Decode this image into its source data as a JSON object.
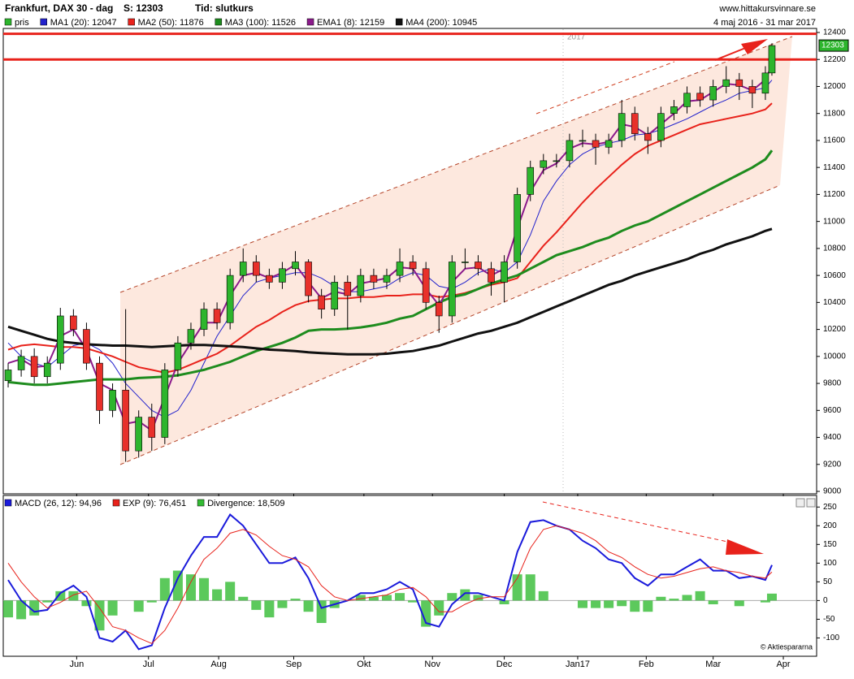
{
  "header": {
    "title": "Frankfurt, DAX 30 -",
    "period": "dag",
    "last": "S: 12303",
    "mode": "Tid: slutkurs",
    "site": "www.hittakursvinnare.se",
    "range": "4 maj 2016 - 31 mar 2017",
    "year_mark": "2017",
    "credit": "© Aktiespararna"
  },
  "chart_data": [
    {
      "type": "candlestick",
      "x": [
        0,
        4,
        8,
        12,
        16,
        20,
        24,
        28,
        32,
        36,
        40,
        44,
        48,
        52,
        56,
        60,
        64,
        68,
        72,
        76,
        80,
        84,
        88,
        92,
        96,
        100,
        104,
        108,
        112,
        116,
        120,
        124,
        128,
        132,
        136,
        140,
        144,
        148,
        152,
        156,
        160,
        164,
        168,
        172,
        176,
        180,
        184,
        188,
        192,
        196,
        200,
        204,
        208,
        212,
        216,
        220,
        224,
        228,
        232,
        234
      ],
      "xlim": [
        -1.5,
        247.7
      ],
      "ylim": [
        8982,
        12430
      ],
      "yticks": [
        9000,
        9200,
        9400,
        9600,
        9800,
        10000,
        10200,
        10400,
        10600,
        10800,
        11000,
        11200,
        11400,
        11600,
        11800,
        12000,
        12200,
        12400
      ],
      "hlines": [
        12390,
        12200
      ],
      "hline_color": "#e8221b",
      "candles": {
        "name": "pris",
        "color": "#2db52d",
        "down_color": "#e8302a",
        "values": [
          [
            9820,
            9950,
            9770,
            9900
          ],
          [
            9900,
            10050,
            9850,
            10000
          ],
          [
            10000,
            10060,
            9800,
            9850
          ],
          [
            9850,
            10000,
            9800,
            9950
          ],
          [
            9950,
            10360,
            9900,
            10300
          ],
          [
            10300,
            10350,
            10150,
            10200
          ],
          [
            10200,
            10250,
            9900,
            9950
          ],
          [
            9950,
            10000,
            9500,
            9600
          ],
          [
            9600,
            9800,
            9550,
            9750
          ],
          [
            9750,
            10350,
            9220,
            9300
          ],
          [
            9300,
            9600,
            9250,
            9550
          ],
          [
            9550,
            9650,
            9300,
            9400
          ],
          [
            9400,
            9950,
            9350,
            9900
          ],
          [
            9900,
            10150,
            9850,
            10100
          ],
          [
            10100,
            10250,
            10050,
            10200
          ],
          [
            10200,
            10400,
            10150,
            10350
          ],
          [
            10350,
            10400,
            10200,
            10250
          ],
          [
            10250,
            10650,
            10200,
            10600
          ],
          [
            10600,
            10800,
            10550,
            10700
          ],
          [
            10700,
            10750,
            10550,
            10600
          ],
          [
            10600,
            10650,
            10500,
            10550
          ],
          [
            10550,
            10700,
            10500,
            10650
          ],
          [
            10650,
            10780,
            10600,
            10700
          ],
          [
            10700,
            10720,
            10400,
            10450
          ],
          [
            10450,
            10500,
            10280,
            10350
          ],
          [
            10350,
            10600,
            10300,
            10550
          ],
          [
            10550,
            10600,
            10200,
            10450
          ],
          [
            10450,
            10650,
            10400,
            10600
          ],
          [
            10600,
            10650,
            10500,
            10550
          ],
          [
            10550,
            10650,
            10500,
            10600
          ],
          [
            10600,
            10800,
            10550,
            10700
          ],
          [
            10700,
            10750,
            10600,
            10650
          ],
          [
            10650,
            10700,
            10350,
            10400
          ],
          [
            10400,
            10450,
            10175,
            10300
          ],
          [
            10300,
            10750,
            10250,
            10700
          ],
          [
            10700,
            10800,
            10650,
            10700
          ],
          [
            10700,
            10750,
            10600,
            10650
          ],
          [
            10650,
            10700,
            10450,
            10550
          ],
          [
            10550,
            10750,
            10400,
            10700
          ],
          [
            10700,
            11250,
            10650,
            11200
          ],
          [
            11200,
            11450,
            11150,
            11400
          ],
          [
            11400,
            11500,
            11350,
            11450
          ],
          [
            11450,
            11500,
            11400,
            11450
          ],
          [
            11450,
            11650,
            11400,
            11600
          ],
          [
            11600,
            11680,
            11550,
            11600
          ],
          [
            11600,
            11650,
            11420,
            11550
          ],
          [
            11550,
            11650,
            11500,
            11600
          ],
          [
            11600,
            11900,
            11550,
            11800
          ],
          [
            11800,
            11850,
            11600,
            11650
          ],
          [
            11650,
            11700,
            11500,
            11600
          ],
          [
            11600,
            11850,
            11550,
            11800
          ],
          [
            11800,
            11900,
            11750,
            11850
          ],
          [
            11850,
            12000,
            11800,
            11950
          ],
          [
            11950,
            12000,
            11850,
            11900
          ],
          [
            11900,
            12050,
            11850,
            12000
          ],
          [
            12000,
            12150,
            11950,
            12050
          ],
          [
            12050,
            12100,
            11900,
            12000
          ],
          [
            12000,
            12050,
            11840,
            11950
          ],
          [
            11950,
            12150,
            11900,
            12100
          ],
          [
            12100,
            12320,
            12080,
            12303
          ]
        ]
      },
      "series": [
        {
          "name": "MA1 (20): 12047",
          "color": "#2222cc",
          "width": 1,
          "values": [
            10100,
            10000,
            9950,
            9920,
            10000,
            10080,
            10100,
            10050,
            9950,
            9800,
            9700,
            9600,
            9550,
            9600,
            9750,
            9950,
            10150,
            10300,
            10450,
            10550,
            10580,
            10600,
            10620,
            10620,
            10580,
            10520,
            10480,
            10480,
            10500,
            10520,
            10580,
            10620,
            10600,
            10520,
            10500,
            10550,
            10620,
            10650,
            10620,
            10700,
            10900,
            11150,
            11300,
            11420,
            11500,
            11550,
            11580,
            11600,
            11640,
            11650,
            11680,
            11720,
            11760,
            11810,
            11860,
            11900,
            11950,
            11970,
            11990,
            12047
          ]
        },
        {
          "name": "MA2 (50): 11876",
          "color": "#e8221b",
          "width": 2,
          "values": [
            10050,
            10080,
            10090,
            10080,
            10070,
            10070,
            10060,
            10030,
            10000,
            9960,
            9920,
            9900,
            9880,
            9900,
            9940,
            9980,
            10020,
            10080,
            10150,
            10220,
            10270,
            10330,
            10380,
            10410,
            10420,
            10430,
            10430,
            10440,
            10440,
            10450,
            10450,
            10460,
            10460,
            10440,
            10450,
            10470,
            10500,
            10530,
            10550,
            10580,
            10700,
            10820,
            10920,
            11030,
            11140,
            11240,
            11330,
            11420,
            11500,
            11560,
            11600,
            11640,
            11680,
            11720,
            11740,
            11760,
            11780,
            11800,
            11830,
            11876
          ]
        },
        {
          "name": "MA3 (100): 11526",
          "color": "#1e8c1e",
          "width": 3,
          "values": [
            9810,
            9800,
            9790,
            9790,
            9800,
            9810,
            9820,
            9830,
            9830,
            9830,
            9840,
            9845,
            9850,
            9860,
            9880,
            9900,
            9930,
            9960,
            10000,
            10040,
            10070,
            10100,
            10140,
            10190,
            10200,
            10200,
            10205,
            10215,
            10230,
            10250,
            10280,
            10300,
            10350,
            10400,
            10440,
            10460,
            10500,
            10540,
            10570,
            10600,
            10650,
            10700,
            10750,
            10780,
            10810,
            10850,
            10880,
            10930,
            10970,
            11000,
            11050,
            11100,
            11150,
            11200,
            11250,
            11300,
            11350,
            11400,
            11460,
            11526
          ]
        },
        {
          "name": "EMA1 (8): 12159",
          "color": "#8b1a8b",
          "width": 2,
          "values": [
            9950,
            9980,
            9920,
            9930,
            10150,
            10200,
            10050,
            9800,
            9750,
            9500,
            9520,
            9450,
            9700,
            9950,
            10100,
            10250,
            10250,
            10450,
            10600,
            10620,
            10580,
            10620,
            10680,
            10550,
            10430,
            10480,
            10460,
            10540,
            10560,
            10580,
            10660,
            10650,
            10500,
            10380,
            10550,
            10650,
            10660,
            10600,
            10650,
            10950,
            11220,
            11380,
            11430,
            11540,
            11580,
            11570,
            11590,
            11720,
            11700,
            11640,
            11720,
            11800,
            11890,
            11900,
            11960,
            12020,
            12010,
            11970,
            12050,
            12159
          ]
        },
        {
          "name": "MA4 (200): 10945",
          "color": "#111111",
          "width": 3,
          "values": [
            10220,
            10190,
            10160,
            10130,
            10110,
            10100,
            10090,
            10085,
            10080,
            10080,
            10075,
            10070,
            10075,
            10080,
            10085,
            10085,
            10080,
            10075,
            10070,
            10060,
            10050,
            10045,
            10040,
            10030,
            10025,
            10020,
            10015,
            10015,
            10015,
            10020,
            10030,
            10040,
            10060,
            10080,
            10110,
            10140,
            10170,
            10190,
            10220,
            10250,
            10290,
            10330,
            10370,
            10410,
            10450,
            10490,
            10530,
            10560,
            10600,
            10630,
            10660,
            10690,
            10720,
            10760,
            10790,
            10830,
            10860,
            10890,
            10930,
            10945
          ]
        }
      ]
    },
    {
      "type": "macd",
      "x": [
        0,
        4,
        8,
        12,
        16,
        20,
        24,
        28,
        32,
        36,
        40,
        44,
        48,
        52,
        56,
        60,
        64,
        68,
        72,
        76,
        80,
        84,
        88,
        92,
        96,
        100,
        104,
        108,
        112,
        116,
        120,
        124,
        128,
        132,
        136,
        140,
        144,
        148,
        152,
        156,
        160,
        164,
        168,
        172,
        176,
        180,
        184,
        188,
        192,
        196,
        200,
        204,
        208,
        212,
        216,
        220,
        224,
        228,
        232,
        234
      ],
      "xlim": [
        -1.5,
        247.7
      ],
      "ylim": [
        -149,
        281
      ],
      "yticks": [
        -100,
        -50,
        0,
        50,
        100,
        150,
        200,
        250
      ],
      "xticks": [
        {
          "value": 21,
          "label": "Jun"
        },
        {
          "value": 43,
          "label": "Jul"
        },
        {
          "value": 64.5,
          "label": "Aug"
        },
        {
          "value": 87.5,
          "label": "Sep"
        },
        {
          "value": 109,
          "label": "Okt"
        },
        {
          "value": 130,
          "label": "Nov"
        },
        {
          "value": 152,
          "label": "Dec"
        },
        {
          "value": 174.5,
          "label": "Jan17"
        },
        {
          "value": 195.5,
          "label": "Feb"
        },
        {
          "value": 216,
          "label": "Mar"
        },
        {
          "value": 237.5,
          "label": "Apr"
        }
      ],
      "series": [
        {
          "name": "MACD (26, 12): 94,96",
          "color": "#1a1adb",
          "style": "line",
          "width": 2,
          "values": [
            55,
            0,
            -30,
            -25,
            20,
            40,
            10,
            -100,
            -110,
            -80,
            -130,
            -120,
            -20,
            60,
            120,
            170,
            170,
            230,
            200,
            150,
            100,
            100,
            115,
            60,
            -20,
            -10,
            0,
            20,
            20,
            30,
            50,
            30,
            -60,
            -70,
            -10,
            20,
            20,
            10,
            0,
            130,
            210,
            215,
            200,
            190,
            160,
            140,
            110,
            100,
            60,
            40,
            70,
            70,
            90,
            110,
            80,
            80,
            60,
            65,
            55,
            94.96
          ]
        },
        {
          "name": "EXP (9): 76,451",
          "color": "#e8221b",
          "style": "line",
          "width": 1,
          "values": [
            100,
            50,
            10,
            -20,
            -5,
            15,
            25,
            -20,
            -70,
            -80,
            -100,
            -115,
            -80,
            -20,
            50,
            110,
            140,
            180,
            190,
            175,
            145,
            120,
            110,
            90,
            40,
            10,
            0,
            5,
            10,
            15,
            30,
            35,
            10,
            -30,
            -30,
            -10,
            5,
            10,
            10,
            60,
            140,
            190,
            200,
            190,
            180,
            160,
            130,
            115,
            90,
            70,
            60,
            65,
            75,
            85,
            90,
            80,
            75,
            65,
            60,
            76.451
          ]
        },
        {
          "name": "Divergence: 18,509",
          "color": "#33bb33",
          "style": "bar",
          "values": [
            -45,
            -50,
            -40,
            -5,
            25,
            25,
            -15,
            -80,
            -40,
            0,
            -30,
            -5,
            60,
            80,
            70,
            60,
            30,
            50,
            10,
            -25,
            -45,
            -20,
            5,
            -30,
            -60,
            -20,
            0,
            15,
            10,
            15,
            20,
            -5,
            -70,
            -40,
            20,
            30,
            15,
            0,
            -10,
            70,
            70,
            25,
            0,
            0,
            -20,
            -20,
            -20,
            -15,
            -30,
            -30,
            10,
            5,
            15,
            25,
            -10,
            0,
            -15,
            0,
            -5,
            18.509
          ]
        }
      ]
    }
  ]
}
